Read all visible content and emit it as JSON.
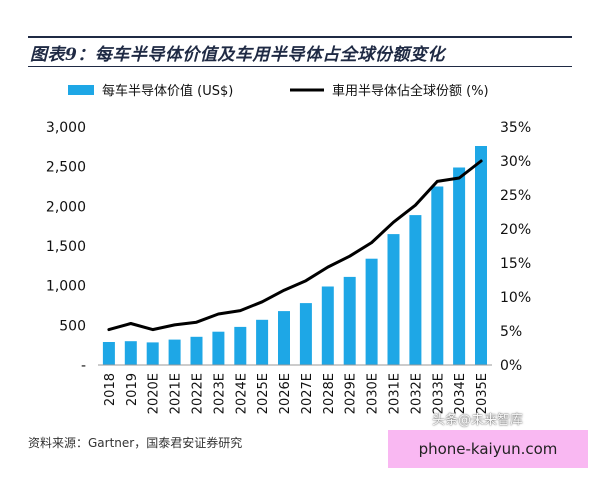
{
  "title": "图表9：每车半导体价值及车用半导体占全球份额变化",
  "source": "资料来源：Gartner，国泰君安证券研究",
  "watermarks": {
    "toutiao": "头条@未来智库",
    "site": "phone-kaiyun.com"
  },
  "colors": {
    "bar": "#1ea7e6",
    "line": "#000000",
    "title": "#1f2a44",
    "watermark_box": "#f9b8f2"
  },
  "chart_data": {
    "type": "bar",
    "categories": [
      "2018",
      "2019",
      "2020E",
      "2021E",
      "2022E",
      "2023E",
      "2024E",
      "2025E",
      "2026E",
      "2027E",
      "2028E",
      "2029E",
      "2030E",
      "2031E",
      "2032E",
      "2033E",
      "2034E",
      "2035E"
    ],
    "series": [
      {
        "name": "每车半导体价值 (US$)",
        "type": "bar",
        "axis": "left",
        "values": [
          290,
          300,
          285,
          320,
          355,
          420,
          480,
          570,
          680,
          780,
          990,
          1110,
          1340,
          1650,
          1890,
          2250,
          2490,
          2760
        ]
      },
      {
        "name": "車用半导体佔全球份额 (%)",
        "type": "line",
        "axis": "right",
        "values": [
          5.2,
          6.1,
          5.2,
          5.9,
          6.3,
          7.5,
          8.0,
          9.3,
          11.0,
          12.4,
          14.4,
          16.0,
          18.0,
          21.0,
          23.5,
          27.0,
          27.5,
          30.0
        ]
      }
    ],
    "y_left": {
      "range": [
        0,
        3000
      ],
      "ticks": [
        0,
        500,
        1000,
        1500,
        2000,
        2500,
        3000
      ],
      "tick_labels": [
        "-",
        "500",
        "1,000",
        "1,500",
        "2,000",
        "2,500",
        "3,000"
      ]
    },
    "y_right": {
      "range": [
        0,
        35
      ],
      "ticks": [
        0,
        5,
        10,
        15,
        20,
        25,
        30,
        35
      ],
      "tick_labels": [
        "0%",
        "5%",
        "10%",
        "15%",
        "20%",
        "25%",
        "30%",
        "35%"
      ]
    },
    "grid": false,
    "legend_position": "top"
  }
}
